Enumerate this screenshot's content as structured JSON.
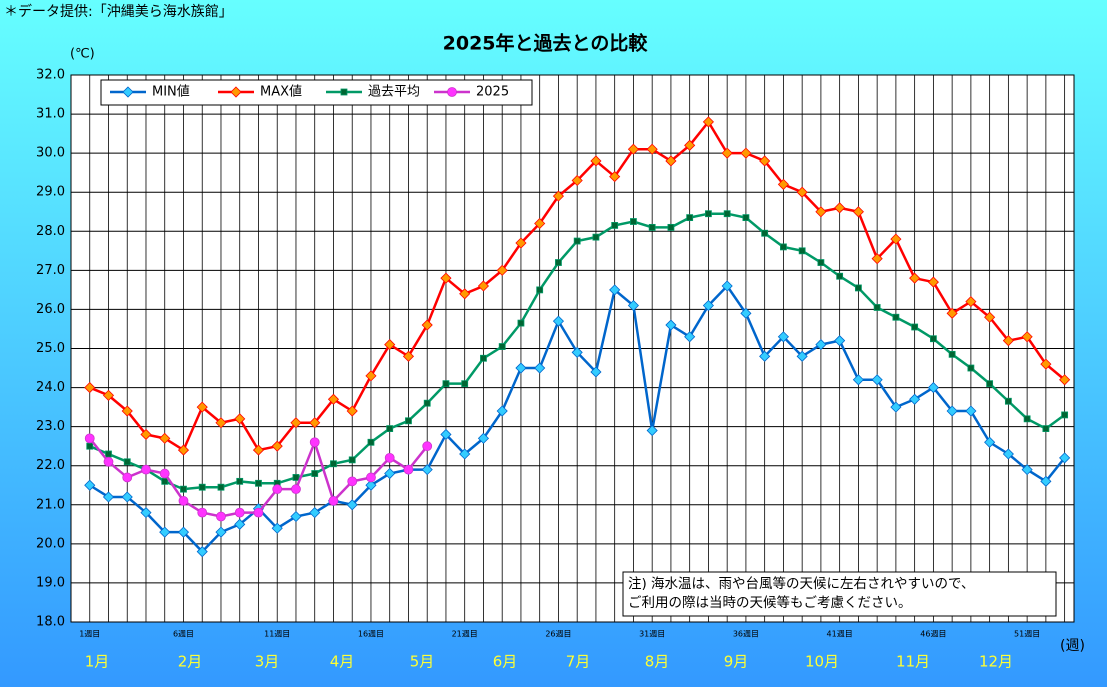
{
  "chart_data": {
    "type": "line",
    "title": "2025年と過去との比較",
    "source": "＊データ提供:「沖縄美ら海水族館」",
    "y_label": "(℃)",
    "x_label": "(週)",
    "note": [
      "注) 海水温は、雨や台風等の天候に左右されやすいので、",
      "ご利用の際は当時の天候等もご考慮ください。"
    ],
    "months": [
      "1月",
      "2月",
      "3月",
      "4月",
      "5月",
      "6月",
      "7月",
      "8月",
      "9月",
      "10月",
      "11月",
      "12月"
    ],
    "categories": [
      "1週目",
      null,
      null,
      null,
      null,
      "6週目",
      null,
      null,
      null,
      null,
      "11週目",
      null,
      null,
      null,
      null,
      "16週目",
      null,
      null,
      null,
      null,
      "21週目",
      null,
      null,
      null,
      null,
      "26週目",
      null,
      null,
      null,
      null,
      "31週目",
      null,
      null,
      null,
      null,
      "36週目",
      null,
      null,
      null,
      null,
      "41週目",
      null,
      null,
      null,
      null,
      "46週目",
      null,
      null,
      null,
      null,
      "51週目",
      null,
      null
    ],
    "ylim": [
      18,
      32
    ],
    "yticks": [
      {
        "value": 18,
        "label": "18.0"
      },
      {
        "value": 19,
        "label": "19.0"
      },
      {
        "value": 20,
        "label": "20.0"
      },
      {
        "value": 21,
        "label": "21.0"
      },
      {
        "value": 22,
        "label": "22.0"
      },
      {
        "value": 23,
        "label": "23.0"
      },
      {
        "value": 24,
        "label": "24.0"
      },
      {
        "value": 25,
        "label": "25.0"
      },
      {
        "value": 26,
        "label": "26.0"
      },
      {
        "value": 27,
        "label": "27.0"
      },
      {
        "value": 28,
        "label": "28.0"
      },
      {
        "value": 29,
        "label": "29.0"
      },
      {
        "value": 30,
        "label": "30.0"
      },
      {
        "value": 31,
        "label": "31.0"
      },
      {
        "value": 32,
        "label": "32.0"
      }
    ],
    "grid": true,
    "legend": "top-left",
    "series": [
      {
        "name": "MIN値",
        "color": "#0066cc",
        "marker": "diamond",
        "marker_color": "#33ccff",
        "values": [
          21.5,
          21.2,
          21.2,
          20.8,
          20.3,
          20.3,
          19.8,
          20.3,
          20.5,
          20.9,
          20.4,
          20.7,
          20.8,
          21.1,
          21.0,
          21.5,
          21.8,
          21.9,
          21.9,
          22.8,
          22.3,
          22.7,
          23.4,
          24.5,
          24.5,
          25.7,
          24.9,
          24.4,
          26.5,
          26.1,
          22.9,
          25.6,
          25.3,
          26.1,
          26.6,
          25.9,
          24.8,
          25.3,
          24.8,
          25.1,
          25.2,
          24.2,
          24.2,
          23.5,
          23.7,
          24.0,
          23.4,
          23.4,
          22.6,
          22.3,
          21.9,
          21.6,
          22.2
        ]
      },
      {
        "name": "MAX値",
        "color": "#ff0000",
        "marker": "diamond",
        "marker_color": "#ff9900",
        "values": [
          24.0,
          23.8,
          23.4,
          22.8,
          22.7,
          22.4,
          23.5,
          23.1,
          23.2,
          22.4,
          22.5,
          23.1,
          23.1,
          23.7,
          23.4,
          24.3,
          25.1,
          24.8,
          25.6,
          26.8,
          26.4,
          26.6,
          27.0,
          27.7,
          28.2,
          28.9,
          29.3,
          29.8,
          29.4,
          30.1,
          30.1,
          29.8,
          30.2,
          30.8,
          30.0,
          30.0,
          29.8,
          29.2,
          29.0,
          28.5,
          28.6,
          28.5,
          27.3,
          27.8,
          26.8,
          26.7,
          25.9,
          26.2,
          25.8,
          25.2,
          25.3,
          24.6,
          24.2
        ]
      },
      {
        "name": "過去平均",
        "color": "#009966",
        "marker": "square",
        "marker_color": "#006633",
        "values": [
          22.5,
          22.3,
          22.1,
          21.9,
          21.6,
          21.4,
          21.45,
          21.45,
          21.6,
          21.55,
          21.55,
          21.7,
          21.8,
          22.05,
          22.15,
          22.6,
          22.95,
          23.15,
          23.6,
          24.1,
          24.1,
          24.75,
          25.05,
          25.65,
          26.5,
          27.2,
          27.75,
          27.85,
          28.15,
          28.25,
          28.1,
          28.1,
          28.35,
          28.45,
          28.45,
          28.35,
          27.95,
          27.6,
          27.5,
          27.2,
          26.85,
          26.55,
          26.05,
          25.8,
          25.55,
          25.25,
          24.85,
          24.5,
          24.1,
          23.65,
          23.2,
          22.95,
          23.3
        ]
      },
      {
        "name": "2025",
        "color": "#cc33cc",
        "marker": "circle",
        "marker_color": "#ff33ff",
        "values": [
          22.7,
          22.1,
          21.7,
          21.9,
          21.8,
          21.1,
          20.8,
          20.7,
          20.8,
          20.8,
          21.4,
          21.4,
          22.6,
          21.1,
          21.6,
          21.7,
          22.2,
          21.9,
          22.5,
          null,
          null,
          null,
          null,
          null,
          null,
          null,
          null,
          null,
          null,
          null,
          null,
          null,
          null,
          null,
          null,
          null,
          null,
          null,
          null,
          null,
          null,
          null,
          null,
          null,
          null,
          null,
          null,
          null,
          null,
          null,
          null,
          null,
          null
        ]
      }
    ]
  }
}
